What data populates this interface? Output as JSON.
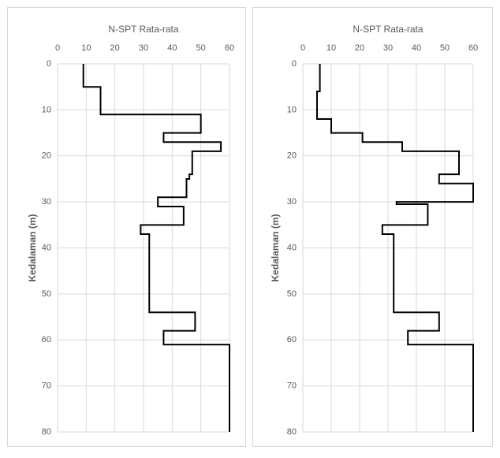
{
  "chart_data": [
    {
      "type": "line",
      "title": "N-SPT Rata-rata",
      "y_label": "Kedalaman (m)",
      "x": [
        9,
        9,
        15,
        15,
        50,
        50,
        37,
        37,
        57,
        57,
        47,
        47,
        46,
        46,
        45,
        45,
        35,
        35,
        44,
        44,
        29,
        29,
        32,
        32,
        48,
        48,
        37,
        37,
        60,
        60
      ],
      "values": [
        0,
        5,
        5,
        11,
        11,
        15,
        15,
        17,
        17,
        19,
        19,
        24,
        24,
        25,
        25,
        29,
        29,
        31,
        31,
        35,
        35,
        37,
        37,
        54,
        54,
        58,
        58,
        61,
        61,
        80
      ],
      "color": "#000000",
      "xlim": [
        0,
        60
      ],
      "xticks": [
        0,
        10,
        20,
        30,
        40,
        50,
        60
      ],
      "ylim": [
        0,
        80
      ],
      "yticks": [
        0,
        10,
        20,
        30,
        40,
        50,
        60,
        70,
        80
      ],
      "y_inverted": true,
      "grid": true
    },
    {
      "type": "line",
      "title": "N-SPT Rata-rata",
      "y_label": "Kedalaman (m)",
      "x": [
        6,
        6,
        5,
        5,
        10,
        10,
        21,
        21,
        35,
        35,
        55,
        55,
        48,
        48,
        60,
        60,
        33,
        33,
        44,
        44,
        28,
        28,
        32,
        32,
        48,
        48,
        37,
        37,
        60,
        60
      ],
      "values": [
        0,
        6,
        6,
        12,
        12,
        15,
        15,
        17,
        17,
        19,
        19,
        24,
        24,
        26,
        26,
        30,
        30,
        30.5,
        30.5,
        35,
        35,
        37,
        37,
        54,
        54,
        58,
        58,
        61,
        61,
        80
      ],
      "color": "#000000",
      "xlim": [
        0,
        60
      ],
      "xticks": [
        0,
        10,
        20,
        30,
        40,
        50,
        60
      ],
      "ylim": [
        0,
        80
      ],
      "yticks": [
        0,
        10,
        20,
        30,
        40,
        50,
        60,
        70,
        80
      ],
      "y_inverted": true,
      "grid": true
    }
  ]
}
